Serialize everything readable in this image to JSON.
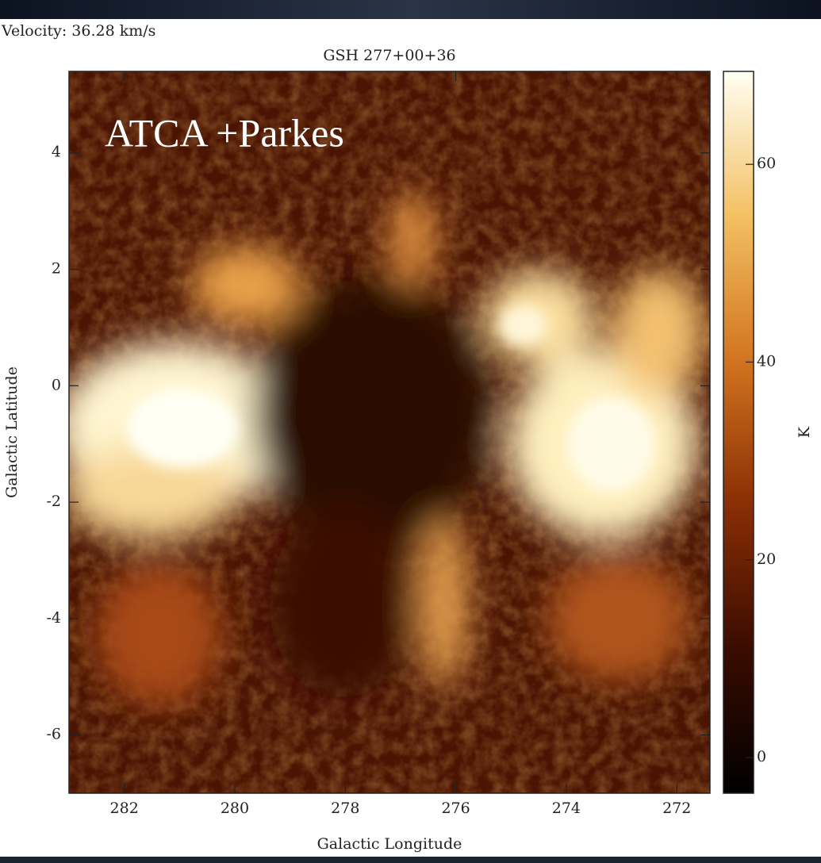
{
  "chart_data": {
    "type": "image",
    "subtitle": "Velocity: 36.28 km/s",
    "title": "GSH 277+00+36",
    "annotation": "ATCA +Parkes",
    "x_label": "Galactic Longitude",
    "y_label": "Galactic Latitude",
    "xlim": [
      283,
      271.4
    ],
    "xticks": [
      282,
      280,
      278,
      276,
      274,
      272
    ],
    "ylim": [
      -7,
      5.4
    ],
    "yticks": [
      4,
      2,
      0,
      -2,
      -4,
      -6
    ],
    "colorbar": {
      "label": "K",
      "lim": [
        -3.6,
        69.4
      ],
      "ticks": [
        0,
        20,
        40,
        60
      ],
      "colormap": [
        "#000000",
        "#3a0c00",
        "#8a2e05",
        "#d2741f",
        "#f3c063",
        "#fffff2"
      ]
    }
  }
}
